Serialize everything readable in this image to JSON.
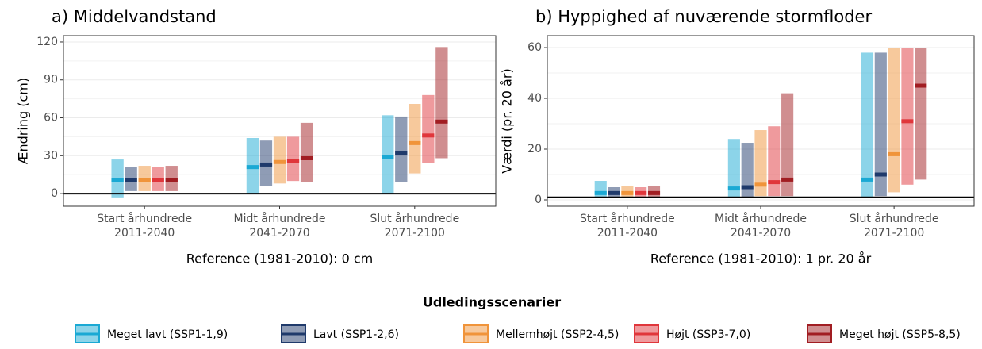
{
  "chart_data": [
    {
      "type": "range_bar",
      "title": "a) Middelvandstand",
      "y_label": "Ændring (cm)",
      "x_label": "Reference (1981-2010): 0 cm",
      "categories": [
        [
          "Start århundrede",
          "2011-2040"
        ],
        [
          "Midt århundrede",
          "2041-2070"
        ],
        [
          "Slut århundrede",
          "2071-2100"
        ]
      ],
      "ylim": [
        -10,
        125
      ],
      "yticks": [
        0,
        30,
        60,
        90,
        120
      ],
      "grid": true,
      "reference_line": 0,
      "series": [
        {
          "name": "Meget lavt (SSP1-1,9)",
          "color": "#1aa9d4",
          "low": [
            -3,
            0,
            0
          ],
          "high": [
            27,
            44,
            62
          ],
          "median": [
            11,
            21,
            29
          ]
        },
        {
          "name": "Lavt (SSP1-2,6)",
          "color": "#1f3a6b",
          "low": [
            2,
            6,
            9
          ],
          "high": [
            21,
            42,
            61
          ],
          "median": [
            11,
            23,
            32
          ]
        },
        {
          "name": "Mellemhøjt (SSP2-4,5)",
          "color": "#f0943a",
          "low": [
            2,
            8,
            16
          ],
          "high": [
            22,
            45,
            71
          ],
          "median": [
            11,
            25,
            40
          ]
        },
        {
          "name": "Højt (SSP3-7,0)",
          "color": "#e0363b",
          "low": [
            2,
            10,
            24
          ],
          "high": [
            21,
            45,
            78
          ],
          "median": [
            11,
            26,
            46
          ]
        },
        {
          "name": "Meget højt (SSP5-8,5)",
          "color": "#a11d22",
          "low": [
            2,
            9,
            28
          ],
          "high": [
            22,
            56,
            116
          ],
          "median": [
            11,
            28,
            57
          ]
        }
      ]
    },
    {
      "type": "range_bar",
      "title": "b) Hyppighed af nuværende stormfloder",
      "y_label": "Værdi (pr. 20 år)",
      "x_label": "Reference (1981-2010): 1 pr. 20 år",
      "categories": [
        [
          "Start århundrede",
          "2011-2040"
        ],
        [
          "Midt århundrede",
          "2041-2070"
        ],
        [
          "Slut århundrede",
          "2071-2100"
        ]
      ],
      "ylim": [
        -2.5,
        64.7
      ],
      "yticks": [
        0,
        20,
        40,
        60
      ],
      "grid": true,
      "reference_line": 1,
      "series": [
        {
          "color": "#1aa9d4",
          "low": [
            1,
            1,
            1
          ],
          "high": [
            7.5,
            24,
            58
          ],
          "median": [
            2.7,
            4.5,
            8
          ]
        },
        {
          "color": "#1f3a6b",
          "low": [
            1,
            1,
            1.5
          ],
          "high": [
            5,
            22.5,
            58
          ],
          "median": [
            2.7,
            5,
            10
          ]
        },
        {
          "color": "#f0943a",
          "low": [
            1,
            1.5,
            3
          ],
          "high": [
            5.5,
            27.5,
            60
          ],
          "median": [
            2.7,
            6,
            18
          ]
        },
        {
          "color": "#e0363b",
          "low": [
            1,
            1.5,
            6
          ],
          "high": [
            5,
            29,
            60
          ],
          "median": [
            2.7,
            7,
            31
          ]
        },
        {
          "color": "#a11d22",
          "low": [
            1,
            1.5,
            8
          ],
          "high": [
            5.5,
            42,
            60
          ],
          "median": [
            2.7,
            8,
            45
          ]
        }
      ]
    }
  ],
  "legend_title": "Udledingsscenarier"
}
